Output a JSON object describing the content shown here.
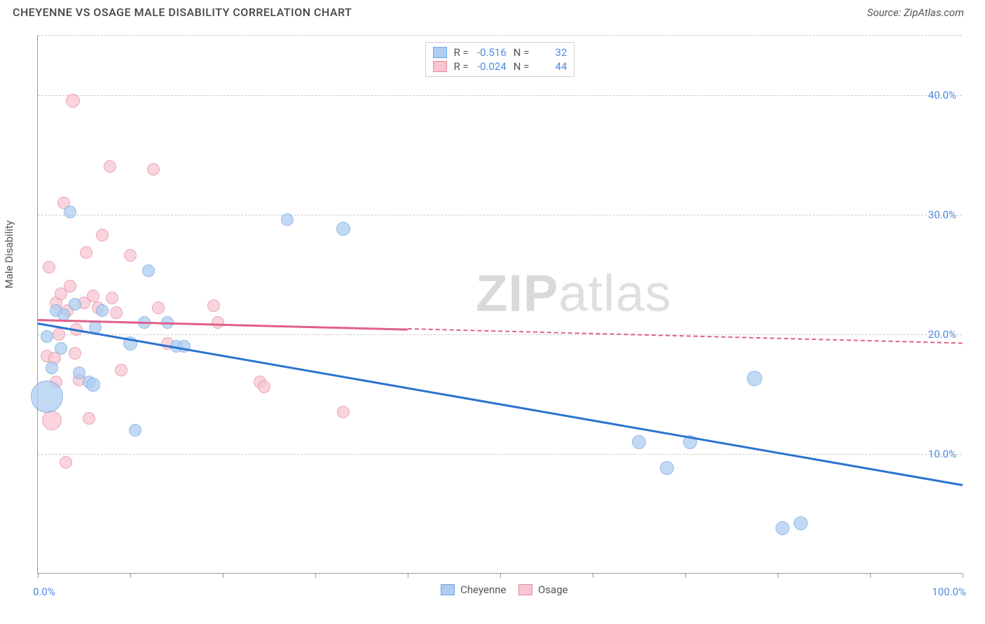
{
  "header": {
    "title": "CHEYENNE VS OSAGE MALE DISABILITY CORRELATION CHART",
    "source": "Source: ZipAtlas.com"
  },
  "chart": {
    "ylabel": "Male Disability",
    "watermark_zip": "ZIP",
    "watermark_atlas": "atlas",
    "xlim": [
      0,
      100
    ],
    "ylim": [
      0,
      45
    ],
    "x_ticks": [
      0,
      10,
      20,
      30,
      40,
      50,
      60,
      70,
      80,
      90,
      100
    ],
    "x_tick_labels": {
      "0": "0.0%",
      "100": "100.0%"
    },
    "y_gridlines": [
      10,
      20,
      30,
      40
    ],
    "y_tick_labels": {
      "10": "10.0%",
      "20": "20.0%",
      "30": "30.0%",
      "40": "40.0%"
    },
    "colors": {
      "cheyenne_fill": "#aecdf0",
      "cheyenne_stroke": "#6fa7e3",
      "cheyenne_line": "#2b73d0",
      "osage_fill": "#f7c6d1",
      "osage_stroke": "#e68aa3",
      "osage_line": "#e06088",
      "axis_label": "#518ae0",
      "grid": "#cccccc",
      "text": "#555555"
    },
    "stats_legend": [
      {
        "series": "cheyenne",
        "R_label": "R =",
        "R": "-0.516",
        "N_label": "N =",
        "N": "32"
      },
      {
        "series": "osage",
        "R_label": "R =",
        "R": "-0.024",
        "N_label": "N =",
        "N": "44"
      }
    ],
    "bottom_legend": [
      {
        "series": "cheyenne",
        "label": "Cheyenne"
      },
      {
        "series": "osage",
        "label": "Osage"
      }
    ],
    "trend_lines": {
      "cheyenne": {
        "x1": 0,
        "y1": 21.0,
        "x2": 100,
        "y2": 7.5,
        "solid_until_x": 100
      },
      "osage": {
        "x1": 0,
        "y1": 21.3,
        "x2": 100,
        "y2": 19.3,
        "solid_until_x": 40
      }
    },
    "points": {
      "cheyenne": [
        {
          "x": 1.0,
          "y": 19.8,
          "r": 9
        },
        {
          "x": 1.0,
          "y": 14.8,
          "r": 23
        },
        {
          "x": 1.5,
          "y": 17.2,
          "r": 9
        },
        {
          "x": 2.0,
          "y": 22.0,
          "r": 9
        },
        {
          "x": 2.5,
          "y": 18.8,
          "r": 9
        },
        {
          "x": 2.8,
          "y": 21.6,
          "r": 9
        },
        {
          "x": 3.5,
          "y": 30.2,
          "r": 9
        },
        {
          "x": 4.0,
          "y": 22.5,
          "r": 9
        },
        {
          "x": 4.5,
          "y": 16.8,
          "r": 9
        },
        {
          "x": 5.5,
          "y": 16.0,
          "r": 9
        },
        {
          "x": 6.0,
          "y": 15.8,
          "r": 10
        },
        {
          "x": 6.2,
          "y": 20.6,
          "r": 9
        },
        {
          "x": 7.0,
          "y": 22.0,
          "r": 9
        },
        {
          "x": 10.0,
          "y": 19.2,
          "r": 10
        },
        {
          "x": 10.5,
          "y": 12.0,
          "r": 9
        },
        {
          "x": 11.5,
          "y": 21.0,
          "r": 9
        },
        {
          "x": 12.0,
          "y": 25.3,
          "r": 9
        },
        {
          "x": 14.0,
          "y": 21.0,
          "r": 9
        },
        {
          "x": 15.0,
          "y": 19.0,
          "r": 9
        },
        {
          "x": 15.8,
          "y": 19.0,
          "r": 9
        },
        {
          "x": 27.0,
          "y": 29.6,
          "r": 9
        },
        {
          "x": 33.0,
          "y": 28.8,
          "r": 10
        },
        {
          "x": 65.0,
          "y": 11.0,
          "r": 10
        },
        {
          "x": 68.0,
          "y": 8.8,
          "r": 10
        },
        {
          "x": 70.5,
          "y": 11.0,
          "r": 10
        },
        {
          "x": 77.5,
          "y": 16.3,
          "r": 11
        },
        {
          "x": 80.5,
          "y": 3.8,
          "r": 10
        },
        {
          "x": 82.5,
          "y": 4.2,
          "r": 10
        }
      ],
      "osage": [
        {
          "x": 1.0,
          "y": 18.2,
          "r": 9
        },
        {
          "x": 1.2,
          "y": 25.6,
          "r": 9
        },
        {
          "x": 1.5,
          "y": 12.8,
          "r": 14
        },
        {
          "x": 1.8,
          "y": 18.0,
          "r": 9
        },
        {
          "x": 2.0,
          "y": 22.6,
          "r": 9
        },
        {
          "x": 2.0,
          "y": 16.0,
          "r": 9
        },
        {
          "x": 2.3,
          "y": 20.0,
          "r": 9
        },
        {
          "x": 2.5,
          "y": 23.4,
          "r": 9
        },
        {
          "x": 2.8,
          "y": 31.0,
          "r": 9
        },
        {
          "x": 3.0,
          "y": 9.3,
          "r": 9
        },
        {
          "x": 3.2,
          "y": 22.0,
          "r": 9
        },
        {
          "x": 3.5,
          "y": 24.0,
          "r": 9
        },
        {
          "x": 3.8,
          "y": 39.5,
          "r": 10
        },
        {
          "x": 4.0,
          "y": 18.4,
          "r": 9
        },
        {
          "x": 4.2,
          "y": 20.4,
          "r": 9
        },
        {
          "x": 4.5,
          "y": 16.2,
          "r": 9
        },
        {
          "x": 5.0,
          "y": 22.6,
          "r": 9
        },
        {
          "x": 5.2,
          "y": 26.8,
          "r": 9
        },
        {
          "x": 5.5,
          "y": 13.0,
          "r": 9
        },
        {
          "x": 6.0,
          "y": 23.2,
          "r": 9
        },
        {
          "x": 6.5,
          "y": 22.2,
          "r": 9
        },
        {
          "x": 7.0,
          "y": 28.3,
          "r": 9
        },
        {
          "x": 7.8,
          "y": 34.0,
          "r": 9
        },
        {
          "x": 8.0,
          "y": 23.0,
          "r": 9
        },
        {
          "x": 8.5,
          "y": 21.8,
          "r": 9
        },
        {
          "x": 9.0,
          "y": 17.0,
          "r": 9
        },
        {
          "x": 10.0,
          "y": 26.6,
          "r": 9
        },
        {
          "x": 12.5,
          "y": 33.8,
          "r": 9
        },
        {
          "x": 13.0,
          "y": 22.2,
          "r": 9
        },
        {
          "x": 14.0,
          "y": 19.2,
          "r": 9
        },
        {
          "x": 19.0,
          "y": 22.4,
          "r": 9
        },
        {
          "x": 19.5,
          "y": 21.0,
          "r": 9
        },
        {
          "x": 24.0,
          "y": 16.0,
          "r": 9
        },
        {
          "x": 24.5,
          "y": 15.6,
          "r": 9
        },
        {
          "x": 33.0,
          "y": 13.5,
          "r": 9
        }
      ]
    }
  }
}
